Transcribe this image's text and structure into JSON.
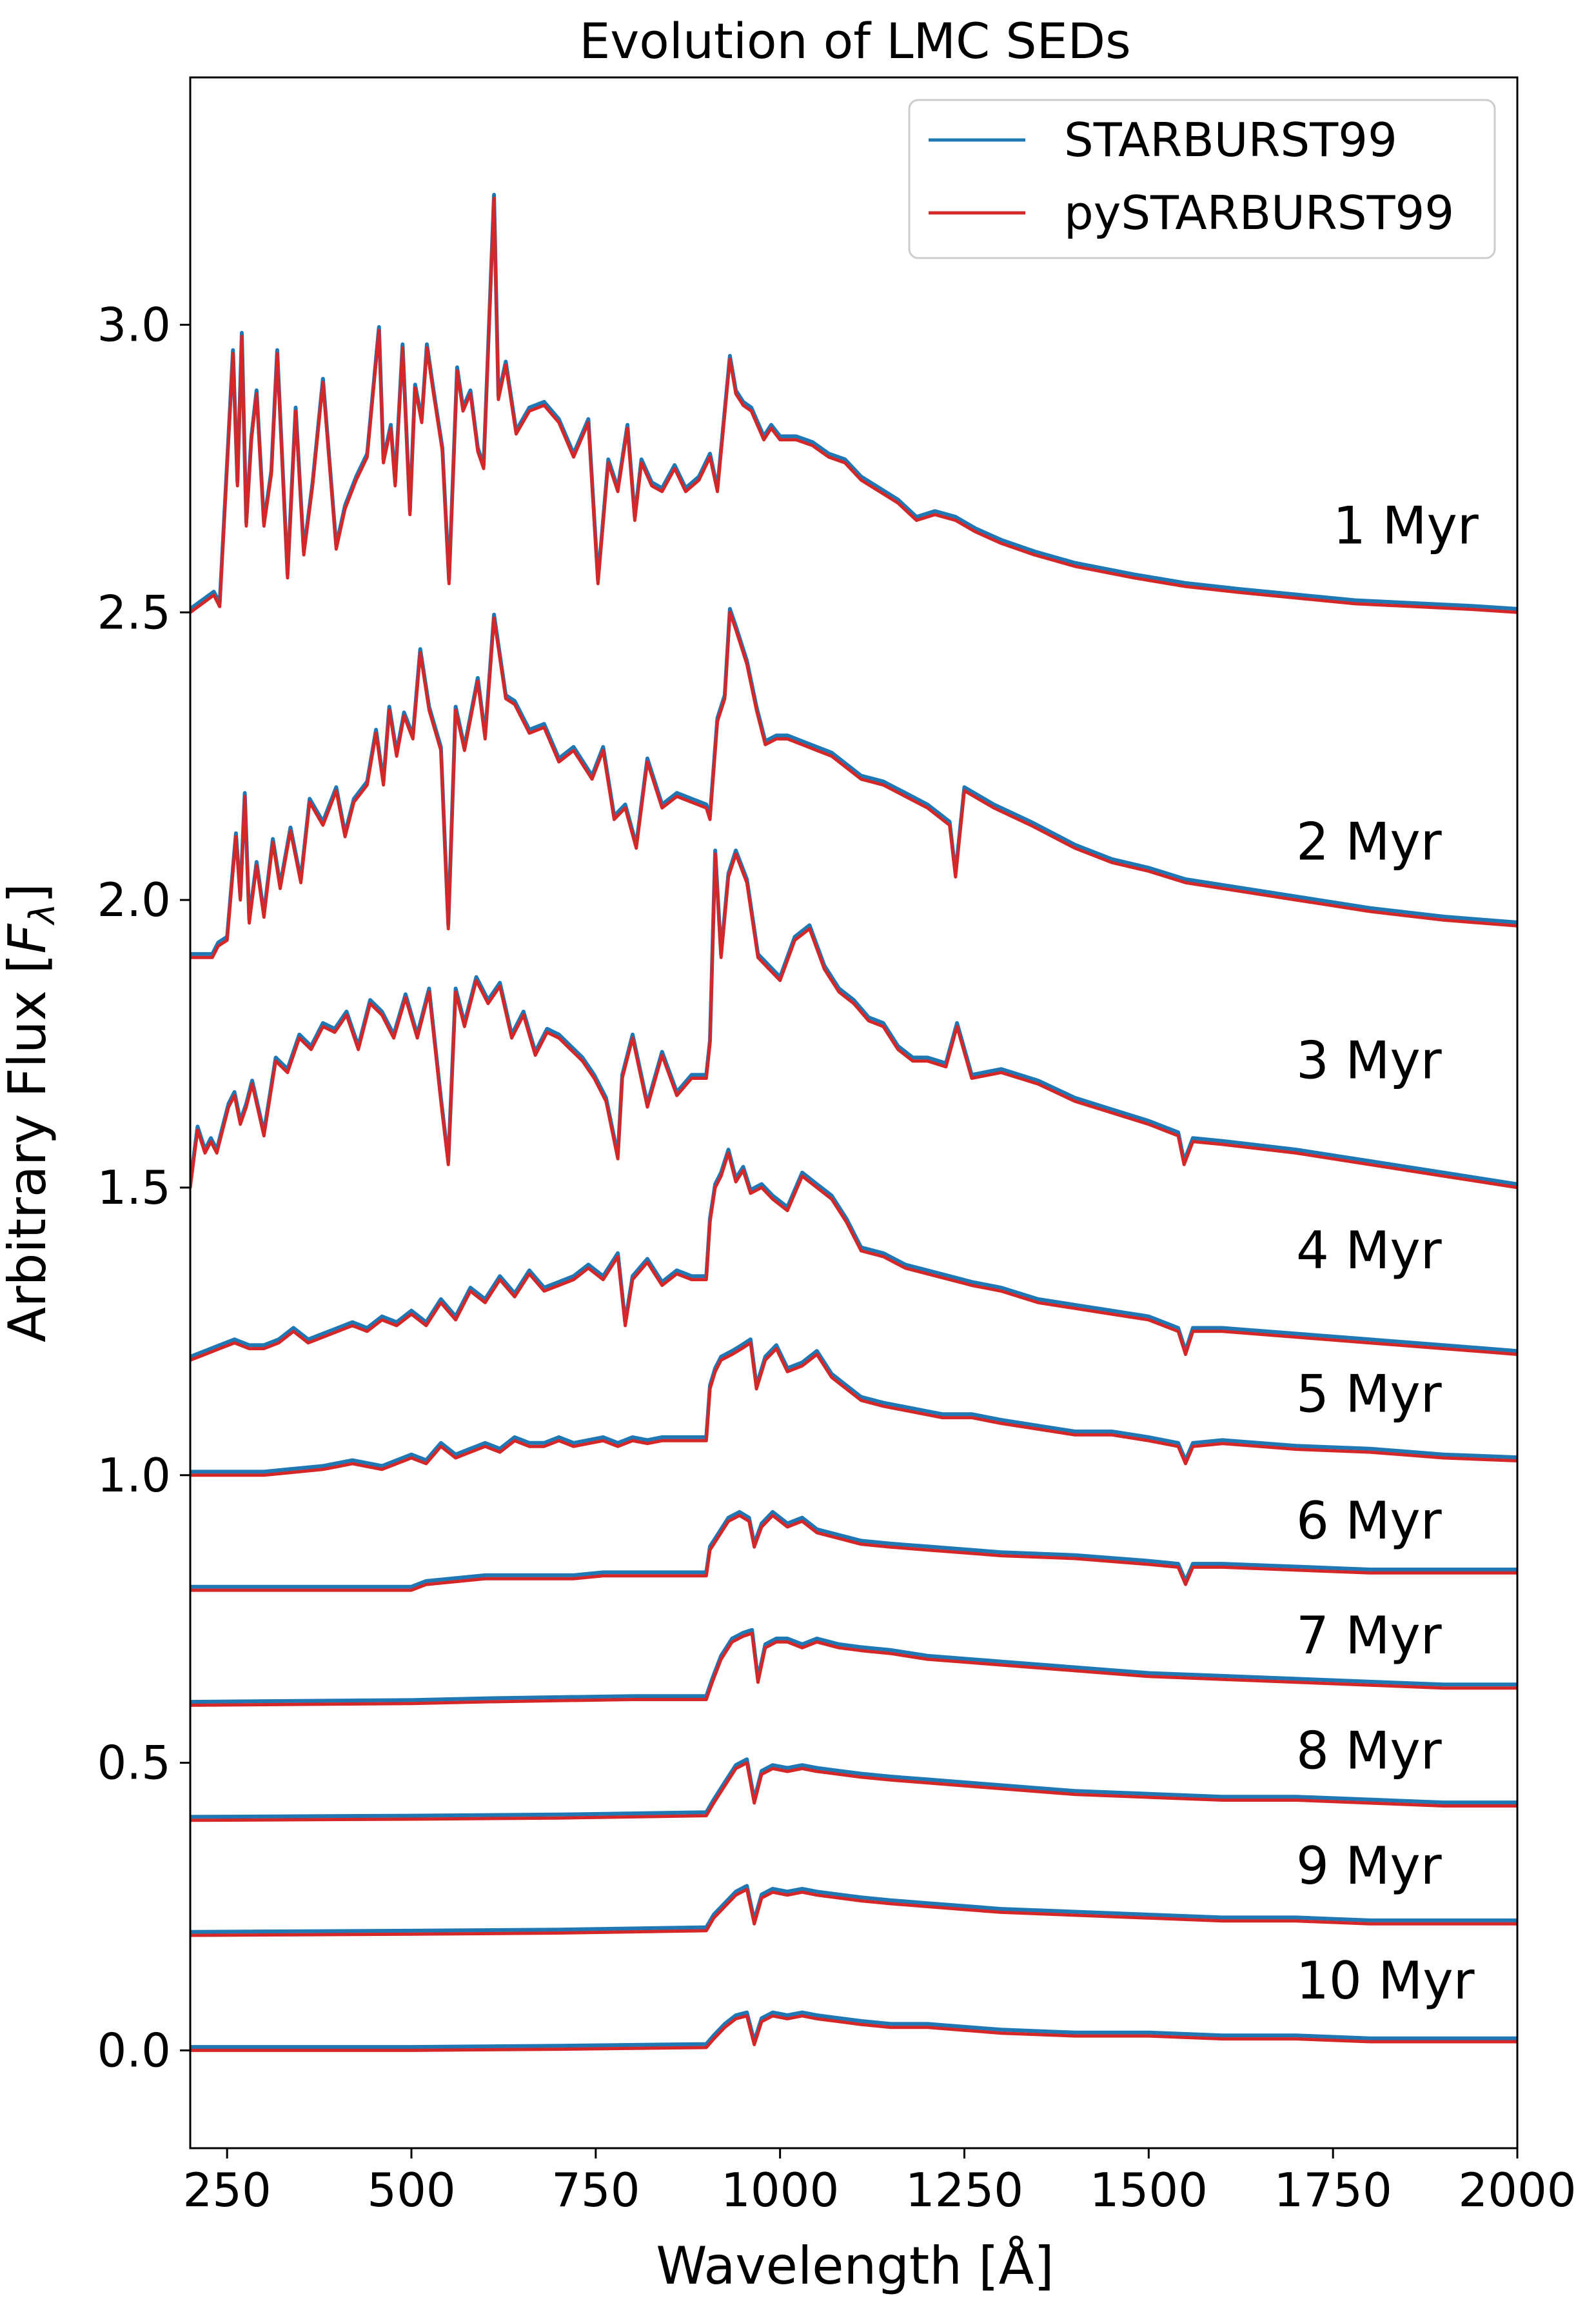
{
  "chart_data": {
    "type": "line",
    "title": "Evolution of LMC SEDs",
    "xlabel": "Wavelength [Å]",
    "ylabel_prefix": "Arbitrary Flux [",
    "ylabel_var": "F",
    "ylabel_sub": "λ",
    "ylabel_suffix": "]",
    "xlim": [
      200,
      2000
    ],
    "ylim": [
      -0.17,
      3.43
    ],
    "xticks": [
      250,
      500,
      750,
      1000,
      1250,
      1500,
      1750,
      2000
    ],
    "xtick_labels": [
      "250",
      "500",
      "750",
      "1000",
      "1250",
      "1500",
      "1750",
      "2000"
    ],
    "yticks": [
      0.0,
      0.5,
      1.0,
      1.5,
      2.0,
      2.5,
      3.0
    ],
    "ytick_labels": [
      "0.0",
      "0.5",
      "1.0",
      "1.5",
      "2.0",
      "2.5",
      "3.0"
    ],
    "legend": {
      "location": "upper-right",
      "entries": [
        {
          "name": "STARBURST99",
          "color": "#1f77b4"
        },
        {
          "name": "pySTARBURST99",
          "color": "#d62728"
        }
      ]
    },
    "series": [
      {
        "name": "STARBURST99",
        "color": "#1f77b4",
        "offset_dy": 0.006
      },
      {
        "name": "pySTARBURST99",
        "color": "#d62728",
        "offset_dy": 0.0
      }
    ],
    "curves": [
      {
        "label": "1 Myr",
        "offset": 2.5,
        "label_x": 1750,
        "label_y": 2.62,
        "x": [
          200,
          232,
          240,
          254,
          258,
          264,
          270,
          276,
          283,
          290,
          300,
          310,
          318,
          332,
          343,
          354,
          366,
          380,
          398,
          410,
          425,
          440,
          456,
          462,
          472,
          478,
          488,
          498,
          505,
          514,
          521,
          530,
          542,
          551,
          562,
          570,
          580,
          590,
          598,
          612,
          618,
          628,
          642,
          660,
          680,
          700,
          720,
          740,
          753,
          767,
          780,
          793,
          803,
          812,
          826,
          840,
          857,
          872,
          890,
          905,
          915,
          932,
          940,
          950,
          961,
          978,
          988,
          1000,
          1022,
          1044,
          1066,
          1088,
          1110,
          1135,
          1160,
          1185,
          1210,
          1238,
          1265,
          1300,
          1345,
          1400,
          1440,
          1480,
          1550,
          1620,
          1700,
          1780,
          1860,
          1940,
          2000
        ],
        "y": [
          0.0,
          0.03,
          0.01,
          0.35,
          0.45,
          0.22,
          0.48,
          0.15,
          0.3,
          0.38,
          0.15,
          0.24,
          0.45,
          0.06,
          0.35,
          0.1,
          0.22,
          0.4,
          0.11,
          0.18,
          0.23,
          0.27,
          0.49,
          0.26,
          0.32,
          0.22,
          0.46,
          0.17,
          0.39,
          0.33,
          0.46,
          0.38,
          0.28,
          0.05,
          0.42,
          0.35,
          0.38,
          0.28,
          0.25,
          0.72,
          0.37,
          0.43,
          0.31,
          0.35,
          0.36,
          0.33,
          0.27,
          0.33,
          0.05,
          0.26,
          0.21,
          0.32,
          0.16,
          0.26,
          0.22,
          0.21,
          0.25,
          0.21,
          0.23,
          0.27,
          0.21,
          0.44,
          0.38,
          0.36,
          0.35,
          0.3,
          0.32,
          0.3,
          0.3,
          0.29,
          0.27,
          0.26,
          0.23,
          0.21,
          0.19,
          0.16,
          0.17,
          0.16,
          0.14,
          0.12,
          0.1,
          0.08,
          0.07,
          0.06,
          0.045,
          0.035,
          0.025,
          0.015,
          0.01,
          0.005,
          0.0
        ]
      },
      {
        "label": "2 Myr",
        "offset": 1.9,
        "label_x": 1700,
        "label_y": 2.07,
        "x": [
          200,
          230,
          238,
          250,
          256,
          262,
          268,
          274,
          280,
          290,
          300,
          312,
          322,
          336,
          350,
          362,
          380,
          398,
          410,
          422,
          440,
          452,
          462,
          470,
          480,
          490,
          502,
          512,
          524,
          540,
          550,
          560,
          572,
          590,
          600,
          612,
          628,
          640,
          660,
          680,
          700,
          720,
          745,
          760,
          775,
          790,
          805,
          820,
          840,
          860,
          880,
          900,
          905,
          915,
          925,
          932,
          940,
          955,
          968,
          980,
          995,
          1010,
          1030,
          1050,
          1070,
          1090,
          1110,
          1140,
          1170,
          1200,
          1230,
          1238,
          1250,
          1290,
          1340,
          1400,
          1450,
          1500,
          1550,
          1600,
          1700,
          1800,
          1900,
          2000
        ],
        "y": [
          0.0,
          0.0,
          0.02,
          0.03,
          0.12,
          0.21,
          0.1,
          0.28,
          0.06,
          0.16,
          0.07,
          0.2,
          0.12,
          0.22,
          0.13,
          0.27,
          0.23,
          0.29,
          0.21,
          0.27,
          0.3,
          0.39,
          0.3,
          0.43,
          0.35,
          0.42,
          0.38,
          0.53,
          0.43,
          0.36,
          0.05,
          0.43,
          0.36,
          0.48,
          0.38,
          0.59,
          0.45,
          0.44,
          0.39,
          0.4,
          0.34,
          0.36,
          0.31,
          0.36,
          0.24,
          0.26,
          0.19,
          0.34,
          0.26,
          0.28,
          0.27,
          0.26,
          0.24,
          0.41,
          0.45,
          0.6,
          0.57,
          0.51,
          0.43,
          0.37,
          0.38,
          0.38,
          0.37,
          0.36,
          0.35,
          0.33,
          0.31,
          0.3,
          0.28,
          0.26,
          0.23,
          0.14,
          0.29,
          0.26,
          0.23,
          0.19,
          0.165,
          0.15,
          0.13,
          0.12,
          0.1,
          0.08,
          0.065,
          0.055
        ]
      },
      {
        "label": "3 Myr",
        "offset": 1.5,
        "label_x": 1700,
        "label_y": 1.69,
        "x": [
          200,
          210,
          220,
          228,
          236,
          244,
          252,
          260,
          268,
          276,
          284,
          300,
          316,
          332,
          348,
          364,
          380,
          396,
          412,
          428,
          444,
          460,
          476,
          492,
          508,
          524,
          540,
          550,
          560,
          572,
          588,
          604,
          620,
          636,
          652,
          668,
          684,
          700,
          716,
          732,
          748,
          764,
          780,
          786,
          800,
          820,
          840,
          860,
          880,
          900,
          905,
          912,
          920,
          930,
          940,
          955,
          970,
          985,
          1000,
          1020,
          1040,
          1060,
          1080,
          1100,
          1120,
          1140,
          1160,
          1180,
          1200,
          1225,
          1240,
          1260,
          1300,
          1350,
          1400,
          1450,
          1500,
          1540,
          1548,
          1560,
          1600,
          1700,
          1800,
          1900,
          2000
        ],
        "y": [
          0.0,
          0.1,
          0.06,
          0.08,
          0.06,
          0.1,
          0.14,
          0.16,
          0.11,
          0.14,
          0.18,
          0.09,
          0.22,
          0.2,
          0.26,
          0.24,
          0.28,
          0.27,
          0.3,
          0.24,
          0.32,
          0.3,
          0.26,
          0.33,
          0.26,
          0.34,
          0.15,
          0.04,
          0.34,
          0.28,
          0.36,
          0.32,
          0.35,
          0.26,
          0.3,
          0.23,
          0.27,
          0.26,
          0.24,
          0.22,
          0.19,
          0.15,
          0.05,
          0.19,
          0.26,
          0.14,
          0.23,
          0.16,
          0.19,
          0.19,
          0.25,
          0.58,
          0.4,
          0.54,
          0.58,
          0.53,
          0.4,
          0.38,
          0.36,
          0.43,
          0.45,
          0.38,
          0.34,
          0.32,
          0.29,
          0.28,
          0.24,
          0.22,
          0.22,
          0.21,
          0.28,
          0.19,
          0.2,
          0.18,
          0.15,
          0.13,
          0.11,
          0.09,
          0.04,
          0.08,
          0.075,
          0.06,
          0.04,
          0.02,
          0.0
        ]
      },
      {
        "label": "4 Myr",
        "offset": 1.2,
        "label_x": 1700,
        "label_y": 1.36,
        "x": [
          200,
          220,
          240,
          260,
          280,
          300,
          320,
          340,
          360,
          380,
          400,
          420,
          440,
          460,
          480,
          500,
          520,
          540,
          560,
          580,
          600,
          620,
          640,
          660,
          680,
          700,
          720,
          740,
          760,
          780,
          790,
          800,
          820,
          840,
          860,
          880,
          900,
          905,
          912,
          920,
          930,
          940,
          950,
          960,
          975,
          990,
          1010,
          1030,
          1050,
          1070,
          1090,
          1110,
          1140,
          1170,
          1200,
          1230,
          1260,
          1300,
          1350,
          1400,
          1450,
          1500,
          1540,
          1550,
          1560,
          1600,
          1700,
          1800,
          1900,
          2000
        ],
        "y": [
          0.0,
          0.01,
          0.02,
          0.03,
          0.02,
          0.02,
          0.03,
          0.05,
          0.03,
          0.04,
          0.05,
          0.06,
          0.05,
          0.07,
          0.06,
          0.08,
          0.06,
          0.1,
          0.07,
          0.12,
          0.1,
          0.14,
          0.11,
          0.15,
          0.12,
          0.13,
          0.14,
          0.16,
          0.14,
          0.18,
          0.06,
          0.14,
          0.17,
          0.13,
          0.15,
          0.14,
          0.14,
          0.24,
          0.3,
          0.32,
          0.36,
          0.31,
          0.33,
          0.29,
          0.3,
          0.28,
          0.26,
          0.32,
          0.3,
          0.28,
          0.24,
          0.19,
          0.18,
          0.16,
          0.15,
          0.14,
          0.13,
          0.12,
          0.1,
          0.09,
          0.08,
          0.07,
          0.05,
          0.01,
          0.05,
          0.05,
          0.04,
          0.03,
          0.02,
          0.01
        ]
      },
      {
        "label": "5 Myr",
        "offset": 1.0,
        "label_x": 1700,
        "label_y": 1.11,
        "x": [
          200,
          300,
          340,
          380,
          420,
          460,
          500,
          520,
          540,
          560,
          580,
          600,
          620,
          640,
          660,
          680,
          700,
          720,
          740,
          760,
          780,
          800,
          820,
          840,
          860,
          880,
          900,
          905,
          912,
          920,
          935,
          948,
          960,
          968,
          980,
          995,
          1010,
          1030,
          1050,
          1070,
          1090,
          1110,
          1140,
          1180,
          1220,
          1260,
          1300,
          1350,
          1400,
          1450,
          1500,
          1540,
          1550,
          1560,
          1600,
          1700,
          1800,
          1900,
          2000
        ],
        "y": [
          0.0,
          0.0,
          0.005,
          0.01,
          0.02,
          0.01,
          0.03,
          0.02,
          0.05,
          0.03,
          0.04,
          0.05,
          0.04,
          0.06,
          0.05,
          0.05,
          0.06,
          0.05,
          0.055,
          0.06,
          0.05,
          0.06,
          0.055,
          0.06,
          0.06,
          0.06,
          0.06,
          0.15,
          0.18,
          0.2,
          0.21,
          0.22,
          0.23,
          0.15,
          0.2,
          0.22,
          0.18,
          0.19,
          0.21,
          0.17,
          0.15,
          0.13,
          0.12,
          0.11,
          0.1,
          0.1,
          0.09,
          0.08,
          0.07,
          0.07,
          0.06,
          0.05,
          0.02,
          0.05,
          0.055,
          0.045,
          0.04,
          0.03,
          0.025
        ]
      },
      {
        "label": "6 Myr",
        "offset": 0.8,
        "label_x": 1700,
        "label_y": 0.89,
        "x": [
          200,
          500,
          520,
          560,
          600,
          640,
          680,
          720,
          760,
          800,
          840,
          880,
          900,
          905,
          915,
          930,
          945,
          958,
          965,
          975,
          990,
          1010,
          1030,
          1050,
          1080,
          1110,
          1150,
          1200,
          1250,
          1300,
          1400,
          1500,
          1540,
          1550,
          1560,
          1600,
          1700,
          1800,
          1900,
          2000
        ],
        "y": [
          0.0,
          0.0,
          0.01,
          0.015,
          0.02,
          0.02,
          0.02,
          0.02,
          0.025,
          0.025,
          0.025,
          0.025,
          0.025,
          0.07,
          0.09,
          0.12,
          0.13,
          0.12,
          0.075,
          0.11,
          0.13,
          0.11,
          0.12,
          0.1,
          0.09,
          0.08,
          0.075,
          0.07,
          0.065,
          0.06,
          0.055,
          0.045,
          0.04,
          0.01,
          0.04,
          0.04,
          0.035,
          0.03,
          0.03,
          0.03
        ]
      },
      {
        "label": "7 Myr",
        "offset": 0.6,
        "label_x": 1700,
        "label_y": 0.69,
        "x": [
          200,
          500,
          600,
          700,
          800,
          900,
          908,
          920,
          935,
          950,
          962,
          970,
          980,
          995,
          1010,
          1030,
          1050,
          1080,
          1110,
          1150,
          1200,
          1250,
          1300,
          1400,
          1500,
          1600,
          1700,
          1800,
          1900,
          2000
        ],
        "y": [
          0.0,
          0.003,
          0.006,
          0.008,
          0.01,
          0.01,
          0.04,
          0.08,
          0.11,
          0.12,
          0.125,
          0.04,
          0.1,
          0.11,
          0.11,
          0.1,
          0.11,
          0.1,
          0.095,
          0.09,
          0.08,
          0.075,
          0.07,
          0.06,
          0.05,
          0.045,
          0.04,
          0.035,
          0.03,
          0.03
        ]
      },
      {
        "label": "8 Myr",
        "offset": 0.4,
        "label_x": 1700,
        "label_y": 0.49,
        "x": [
          200,
          500,
          700,
          900,
          910,
          925,
          940,
          955,
          965,
          975,
          990,
          1010,
          1030,
          1050,
          1080,
          1110,
          1150,
          1200,
          1250,
          1300,
          1400,
          1500,
          1600,
          1700,
          1800,
          1900,
          2000
        ],
        "y": [
          0.0,
          0.002,
          0.004,
          0.008,
          0.03,
          0.06,
          0.09,
          0.1,
          0.03,
          0.08,
          0.09,
          0.085,
          0.09,
          0.085,
          0.08,
          0.075,
          0.07,
          0.065,
          0.06,
          0.055,
          0.045,
          0.04,
          0.035,
          0.035,
          0.03,
          0.025,
          0.025
        ]
      },
      {
        "label": "9 Myr",
        "offset": 0.2,
        "label_x": 1700,
        "label_y": 0.29,
        "x": [
          200,
          500,
          700,
          900,
          910,
          925,
          940,
          955,
          965,
          975,
          990,
          1010,
          1030,
          1050,
          1080,
          1110,
          1150,
          1200,
          1250,
          1300,
          1400,
          1500,
          1600,
          1700,
          1800,
          1900,
          2000
        ],
        "y": [
          0.0,
          0.002,
          0.004,
          0.008,
          0.03,
          0.05,
          0.07,
          0.08,
          0.02,
          0.065,
          0.075,
          0.07,
          0.075,
          0.07,
          0.065,
          0.06,
          0.055,
          0.05,
          0.045,
          0.04,
          0.035,
          0.03,
          0.025,
          0.025,
          0.02,
          0.02,
          0.02
        ]
      },
      {
        "label": "10 Myr",
        "offset": 0.0,
        "label_x": 1700,
        "label_y": 0.09,
        "x": [
          200,
          500,
          700,
          900,
          910,
          925,
          940,
          955,
          965,
          975,
          990,
          1010,
          1030,
          1050,
          1080,
          1110,
          1150,
          1200,
          1250,
          1300,
          1400,
          1500,
          1600,
          1700,
          1800,
          1900,
          2000
        ],
        "y": [
          0.0,
          0.0,
          0.002,
          0.005,
          0.02,
          0.04,
          0.055,
          0.06,
          0.01,
          0.05,
          0.06,
          0.055,
          0.06,
          0.055,
          0.05,
          0.045,
          0.04,
          0.04,
          0.035,
          0.03,
          0.025,
          0.025,
          0.02,
          0.02,
          0.015,
          0.015,
          0.015
        ]
      }
    ]
  }
}
